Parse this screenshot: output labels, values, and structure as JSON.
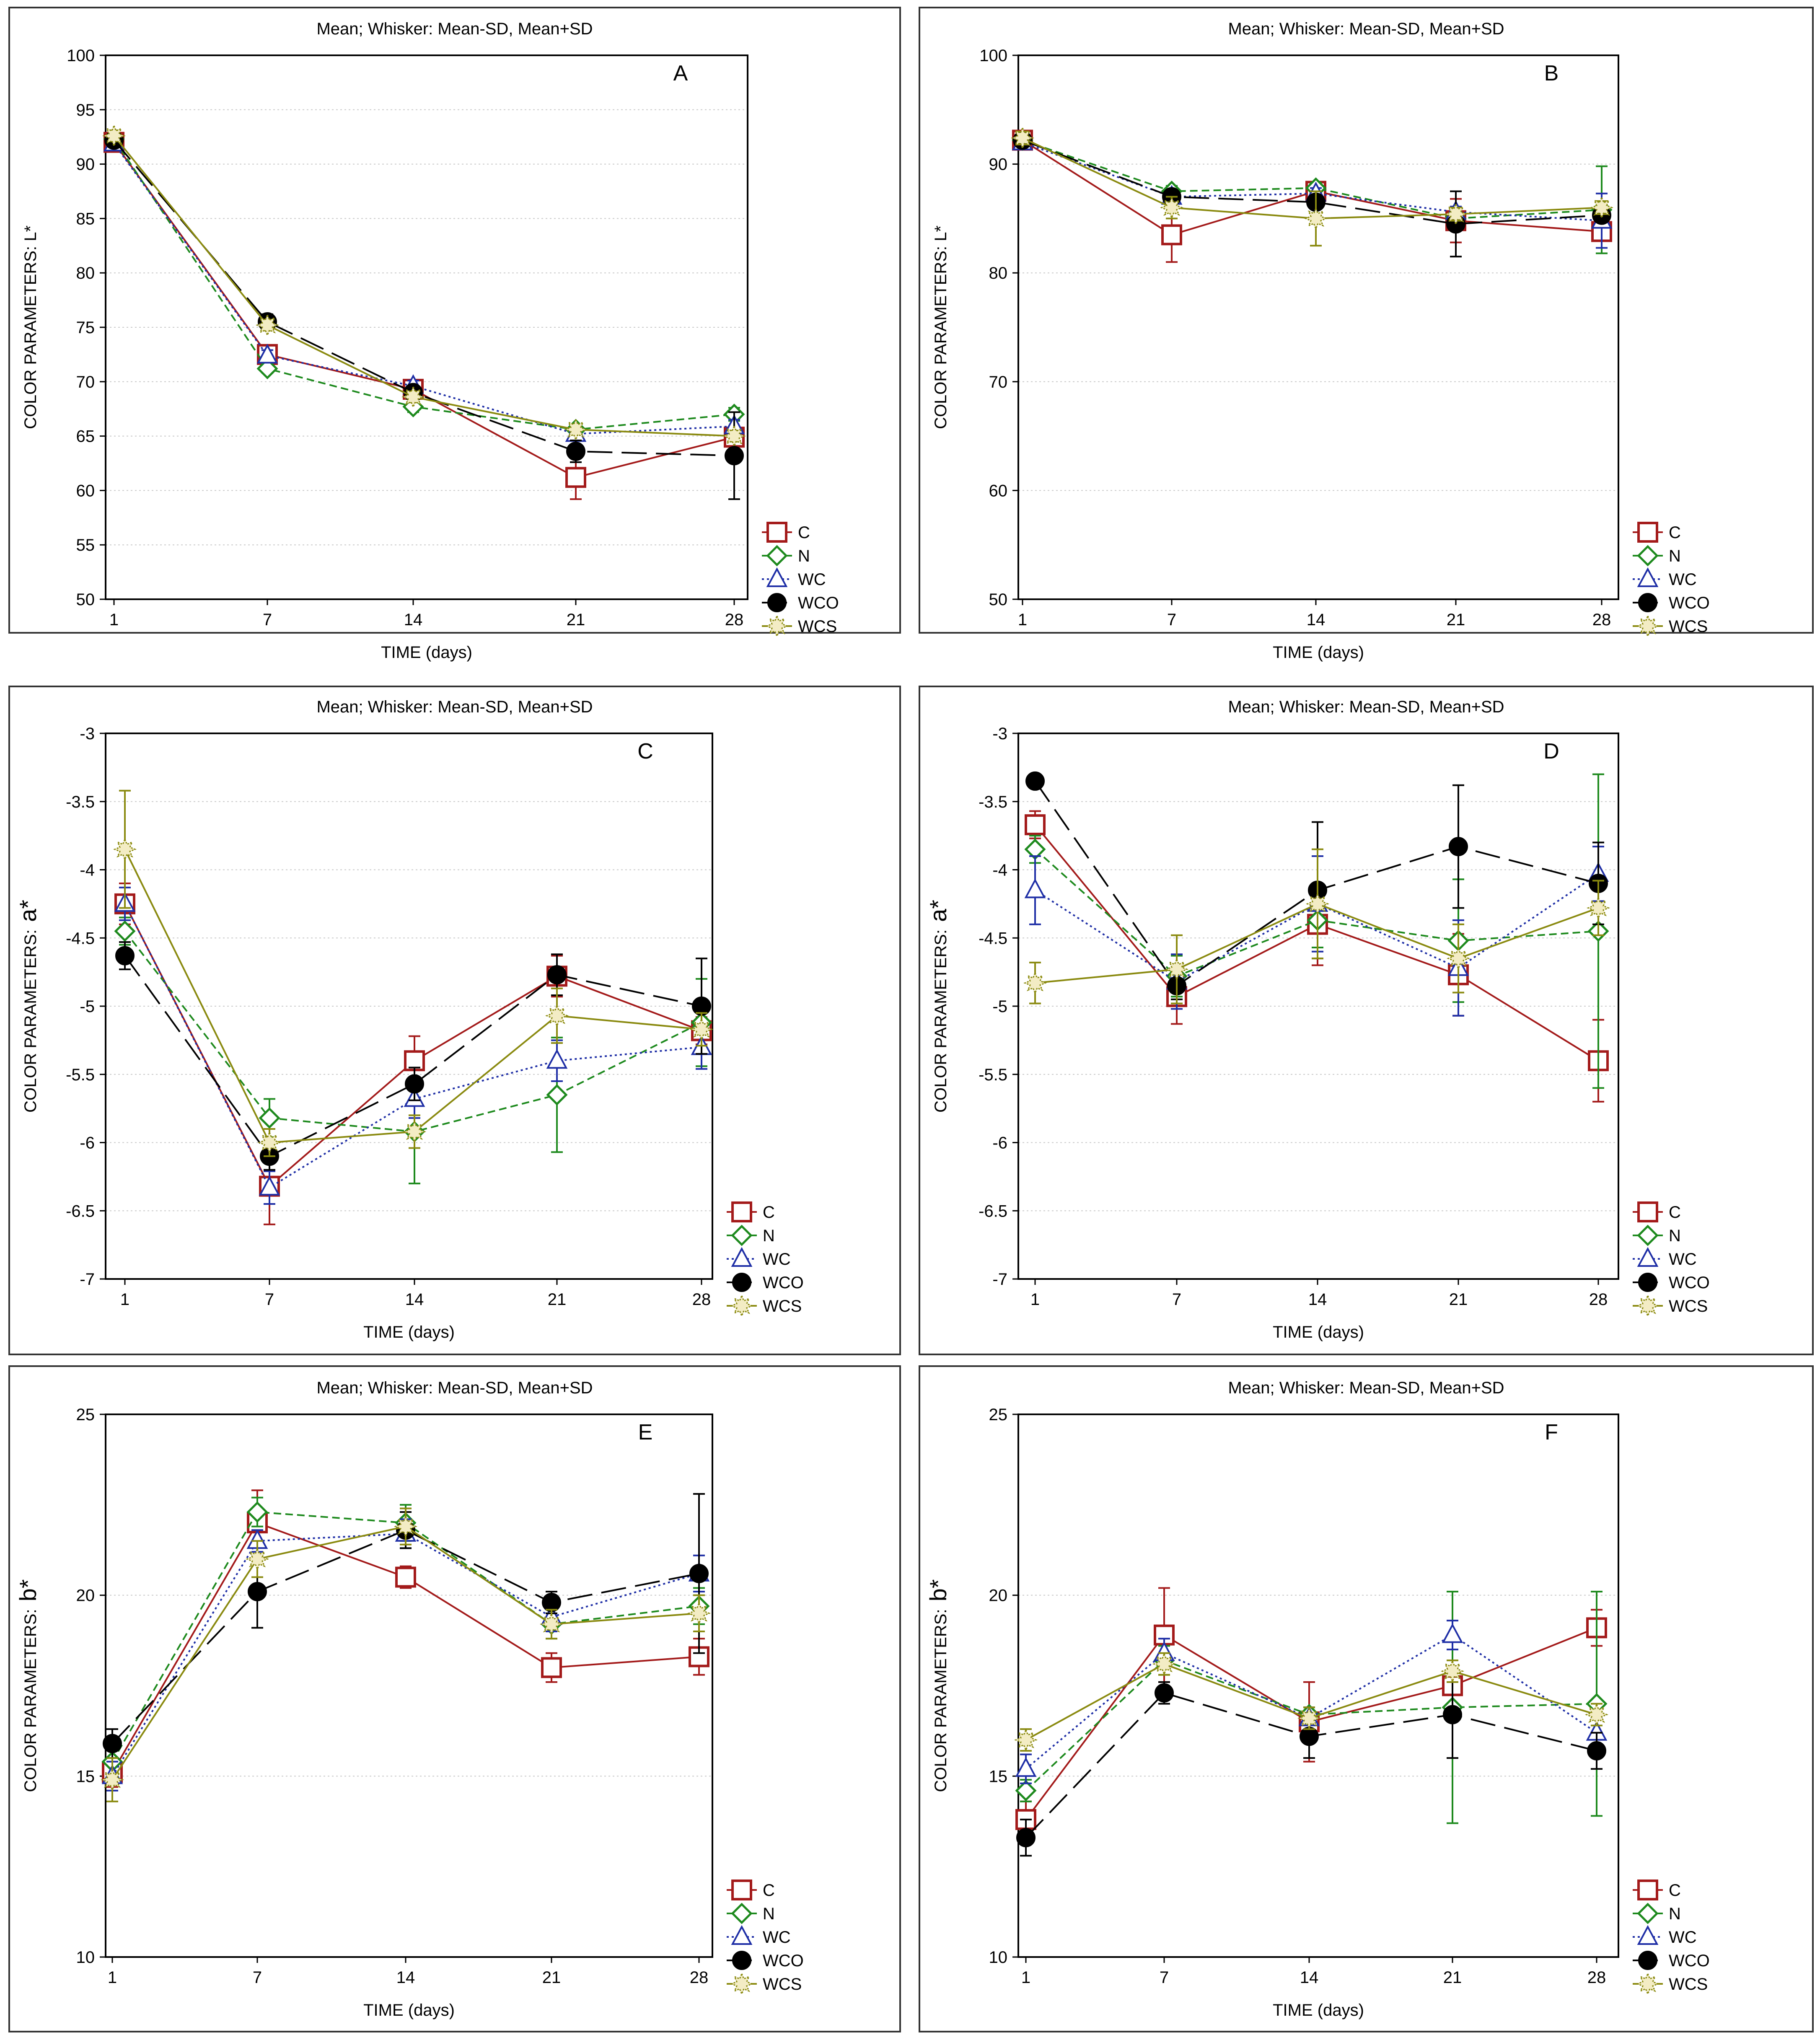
{
  "colors": {
    "C": "#a31a1a",
    "N": "#1e8a1e",
    "WC": "#1f2fa6",
    "WCO": "#000000",
    "WCS": "#8a8a10",
    "grid": "#c8c8c8",
    "frame": "#000000"
  },
  "chart_data": [
    {
      "panel": "A",
      "type": "line",
      "title": "Mean;  Whisker: Mean-SD, Mean+SD",
      "xlabel": "TIME (days)",
      "ylabel": "COLOR PARAMETERS: L*",
      "categories": [
        "1",
        "7",
        "14",
        "21",
        "28"
      ],
      "ylim": [
        50,
        100
      ],
      "yticks": [
        "50",
        "55",
        "60",
        "65",
        "70",
        "75",
        "80",
        "85",
        "90",
        "95",
        "100"
      ],
      "grid": "horizontal dotted",
      "legend_position": "bottom-right",
      "series": [
        {
          "name": "C",
          "values": [
            92.0,
            72.5,
            69.3,
            61.2,
            64.9
          ],
          "sd": [
            0.5,
            0.6,
            0.6,
            2.0,
            0.5
          ],
          "marker": "square",
          "dash": "solid"
        },
        {
          "name": "N",
          "values": [
            92.3,
            71.2,
            67.7,
            65.6,
            67.0
          ],
          "sd": [
            0.5,
            0.4,
            0.5,
            0.4,
            0.6
          ],
          "marker": "diamond",
          "dash": "short-dash"
        },
        {
          "name": "WC",
          "values": [
            91.9,
            72.4,
            69.6,
            65.2,
            65.9
          ],
          "sd": [
            0.5,
            0.5,
            0.5,
            0.4,
            0.6
          ],
          "marker": "triangle",
          "dash": "dotted"
        },
        {
          "name": "WCO",
          "values": [
            92.2,
            75.5,
            69.0,
            63.6,
            63.2
          ],
          "sd": [
            0.5,
            0.7,
            0.5,
            1.0,
            4.0
          ],
          "marker": "circle",
          "dash": "long-dash"
        },
        {
          "name": "WCS",
          "values": [
            92.6,
            75.2,
            68.6,
            65.6,
            65.0
          ],
          "sd": [
            0.5,
            0.5,
            0.5,
            0.4,
            0.5
          ],
          "marker": "star",
          "dash": "solid"
        }
      ]
    },
    {
      "panel": "B",
      "type": "line",
      "title": "Mean;  Whisker: Mean-SD, Mean+SD",
      "xlabel": "TIME (days)",
      "ylabel": "COLOR PARAMETERS: L*",
      "categories": [
        "1",
        "7",
        "14",
        "21",
        "28"
      ],
      "ylim": [
        50,
        100
      ],
      "yticks": [
        "50",
        "60",
        "70",
        "80",
        "90",
        "100"
      ],
      "grid": "horizontal dotted",
      "legend_position": "bottom-right",
      "series": [
        {
          "name": "C",
          "values": [
            92.2,
            83.5,
            87.5,
            84.8,
            83.8
          ],
          "sd": [
            0.6,
            2.5,
            0.8,
            2.0,
            0.8
          ],
          "marker": "square",
          "dash": "solid"
        },
        {
          "name": "N",
          "values": [
            92.2,
            87.5,
            87.8,
            85.0,
            85.8
          ],
          "sd": [
            0.6,
            0.5,
            0.5,
            0.5,
            4.0
          ],
          "marker": "diamond",
          "dash": "short-dash"
        },
        {
          "name": "WC",
          "values": [
            92.0,
            87.0,
            87.3,
            85.6,
            84.8
          ],
          "sd": [
            0.6,
            0.5,
            0.5,
            0.5,
            2.5
          ],
          "marker": "triangle",
          "dash": "dotted"
        },
        {
          "name": "WCO",
          "values": [
            92.2,
            87.0,
            86.5,
            84.5,
            85.3
          ],
          "sd": [
            0.6,
            0.5,
            0.6,
            3.0,
            0.5
          ],
          "marker": "circle",
          "dash": "long-dash"
        },
        {
          "name": "WCS",
          "values": [
            92.4,
            86.0,
            85.0,
            85.4,
            86.0
          ],
          "sd": [
            0.6,
            1.0,
            2.5,
            0.6,
            0.6
          ],
          "marker": "star",
          "dash": "solid"
        }
      ]
    },
    {
      "panel": "C",
      "type": "line",
      "title": "Mean;  Whisker: Mean-SD, Mean+SD",
      "xlabel": "TIME (days)",
      "ylabel": "COLOR PARAMETERS:",
      "ylabel_suffix": "a*",
      "categories": [
        "1",
        "7",
        "14",
        "21",
        "28"
      ],
      "ylim": [
        -7,
        -3
      ],
      "yticks": [
        "-7",
        "-6.5",
        "-6",
        "-5.5",
        "-5",
        "-4.5",
        "-4",
        "-3.5",
        "-3"
      ],
      "grid": "horizontal dotted",
      "legend_position": "bottom-right",
      "series": [
        {
          "name": "C",
          "values": [
            -4.25,
            -6.32,
            -5.4,
            -4.78,
            -5.18
          ],
          "sd": [
            0.15,
            0.28,
            0.18,
            0.15,
            0.1
          ],
          "marker": "square",
          "dash": "solid"
        },
        {
          "name": "N",
          "values": [
            -4.45,
            -5.82,
            -5.92,
            -5.65,
            -5.12
          ],
          "sd": [
            0.1,
            0.14,
            0.38,
            0.42,
            0.32
          ],
          "marker": "diamond",
          "dash": "short-dash"
        },
        {
          "name": "WC",
          "values": [
            -4.25,
            -6.33,
            -5.68,
            -5.4,
            -5.3
          ],
          "sd": [
            0.12,
            0.12,
            0.14,
            0.15,
            0.16
          ],
          "marker": "triangle",
          "dash": "dotted"
        },
        {
          "name": "WCO",
          "values": [
            -4.63,
            -6.1,
            -5.57,
            -4.77,
            -5.0
          ],
          "sd": [
            0.1,
            0.1,
            0.12,
            0.15,
            0.35
          ],
          "marker": "circle",
          "dash": "long-dash"
        },
        {
          "name": "WCS",
          "values": [
            -3.85,
            -6.0,
            -5.92,
            -5.07,
            -5.17
          ],
          "sd": [
            0.43,
            0.1,
            0.12,
            0.2,
            0.12
          ],
          "marker": "star",
          "dash": "solid"
        }
      ]
    },
    {
      "panel": "D",
      "type": "line",
      "title": "Mean;  Whisker: Mean-SD, Mean+SD",
      "xlabel": "TIME (days)",
      "ylabel": "COLOR PARAMETERS:",
      "ylabel_suffix": "a*",
      "categories": [
        "1",
        "7",
        "14",
        "21",
        "28"
      ],
      "ylim": [
        -7,
        -3
      ],
      "yticks": [
        "-7",
        "-6.5",
        "-6",
        "-5.5",
        "-5",
        "-4.5",
        "-4",
        "-3.5",
        "-3"
      ],
      "grid": "horizontal dotted",
      "legend_position": "bottom-right",
      "series": [
        {
          "name": "C",
          "values": [
            -3.67,
            -4.93,
            -4.4,
            -4.77,
            -5.4
          ],
          "sd": [
            0.1,
            0.2,
            0.3,
            0.3,
            0.3
          ],
          "marker": "square",
          "dash": "solid"
        },
        {
          "name": "N",
          "values": [
            -3.85,
            -4.78,
            -4.37,
            -4.52,
            -4.45
          ],
          "sd": [
            0.1,
            0.15,
            0.2,
            0.45,
            1.15
          ],
          "marker": "diamond",
          "dash": "short-dash"
        },
        {
          "name": "WC",
          "values": [
            -4.15,
            -4.82,
            -4.25,
            -4.72,
            -4.03
          ],
          "sd": [
            0.25,
            0.2,
            0.35,
            0.35,
            0.2
          ],
          "marker": "triangle",
          "dash": "dotted"
        },
        {
          "name": "WCO",
          "values": [
            -3.35,
            -4.85,
            -4.15,
            -3.83,
            -4.1
          ],
          "sd": [
            0.05,
            0.1,
            0.5,
            0.45,
            0.3
          ],
          "marker": "circle",
          "dash": "long-dash"
        },
        {
          "name": "WCS",
          "values": [
            -4.83,
            -4.73,
            -4.25,
            -4.65,
            -4.28
          ],
          "sd": [
            0.15,
            0.25,
            0.4,
            0.25,
            0.2
          ],
          "marker": "star",
          "dash": "solid"
        }
      ]
    },
    {
      "panel": "E",
      "type": "line",
      "title": "Mean;  Whisker: Mean-SD, Mean+SD",
      "xlabel": "TIME (days)",
      "ylabel": "COLOR PARAMETERS:",
      "ylabel_suffix": "b*",
      "categories": [
        "1",
        "7",
        "14",
        "21",
        "28"
      ],
      "ylim": [
        10,
        25
      ],
      "yticks": [
        "10",
        "15",
        "20",
        "25"
      ],
      "grid": "horizontal dotted",
      "legend_position": "bottom-right",
      "series": [
        {
          "name": "C",
          "values": [
            15.1,
            22.0,
            20.5,
            18.0,
            18.3
          ],
          "sd": [
            0.4,
            0.9,
            0.3,
            0.4,
            0.5
          ],
          "marker": "square",
          "dash": "solid"
        },
        {
          "name": "N",
          "values": [
            15.4,
            22.3,
            22.0,
            19.2,
            19.7
          ],
          "sd": [
            0.4,
            0.4,
            0.5,
            0.4,
            0.5
          ],
          "marker": "diamond",
          "dash": "short-dash"
        },
        {
          "name": "WC",
          "values": [
            15.0,
            21.5,
            21.7,
            19.4,
            20.6
          ],
          "sd": [
            0.4,
            0.3,
            0.4,
            0.4,
            0.5
          ],
          "marker": "triangle",
          "dash": "dotted"
        },
        {
          "name": "WCO",
          "values": [
            15.9,
            20.1,
            21.8,
            19.8,
            20.6
          ],
          "sd": [
            0.4,
            1.0,
            0.5,
            0.3,
            2.2
          ],
          "marker": "circle",
          "dash": "long-dash"
        },
        {
          "name": "WCS",
          "values": [
            14.9,
            21.0,
            21.9,
            19.2,
            19.5
          ],
          "sd": [
            0.6,
            0.5,
            0.5,
            0.4,
            0.5
          ],
          "marker": "star",
          "dash": "solid"
        }
      ]
    },
    {
      "panel": "F",
      "type": "line",
      "title": "Mean;  Whisker: Mean-SD, Mean+SD",
      "xlabel": "TIME (days)",
      "ylabel": "COLOR PARAMETERS:",
      "ylabel_suffix": "b*",
      "categories": [
        "1",
        "7",
        "14",
        "21",
        "28"
      ],
      "ylim": [
        10,
        25
      ],
      "yticks": [
        "10",
        "15",
        "20",
        "25"
      ],
      "grid": "horizontal dotted",
      "legend_position": "bottom-right",
      "series": [
        {
          "name": "C",
          "values": [
            13.8,
            18.9,
            16.5,
            17.5,
            19.1
          ],
          "sd": [
            0.5,
            1.3,
            1.1,
            0.5,
            0.5
          ],
          "marker": "square",
          "dash": "solid"
        },
        {
          "name": "N",
          "values": [
            14.6,
            18.2,
            16.7,
            16.9,
            17.0
          ],
          "sd": [
            0.3,
            0.4,
            0.2,
            3.2,
            3.1
          ],
          "marker": "diamond",
          "dash": "short-dash"
        },
        {
          "name": "WC",
          "values": [
            15.2,
            18.4,
            16.6,
            18.9,
            16.2
          ],
          "sd": [
            0.4,
            0.4,
            0.3,
            0.4,
            0.4
          ],
          "marker": "triangle",
          "dash": "dotted"
        },
        {
          "name": "WCO",
          "values": [
            13.3,
            17.3,
            16.1,
            16.7,
            15.7
          ],
          "sd": [
            0.5,
            0.3,
            0.6,
            1.2,
            0.5
          ],
          "marker": "circle",
          "dash": "long-dash"
        },
        {
          "name": "WCS",
          "values": [
            16.0,
            18.1,
            16.6,
            17.9,
            16.7
          ],
          "sd": [
            0.3,
            0.3,
            0.3,
            0.3,
            0.3
          ],
          "marker": "star",
          "dash": "solid"
        }
      ]
    }
  ]
}
